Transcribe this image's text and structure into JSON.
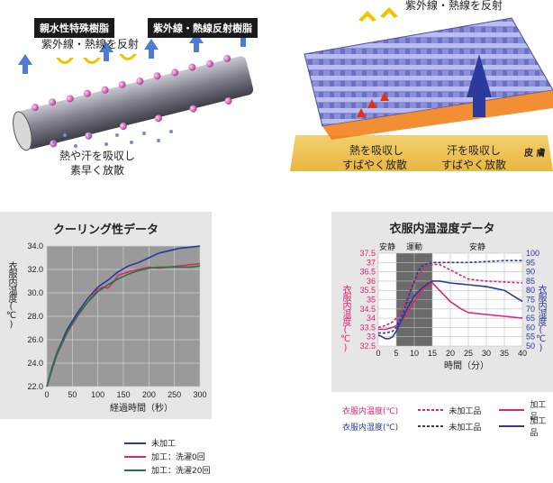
{
  "fiber_illustration": {
    "label_resin_hydrophilic": "親水性特殊樹脂",
    "label_resin_uv_reflect": "紫外線・熱線反射樹脂",
    "text_reflect": "紫外線・熱線を反射",
    "caption_line1": "熱や汗を吸収し",
    "caption_line2": "素早く放散"
  },
  "fabric_illustration": {
    "text_reflect": "紫外線・熱線を反射",
    "caption_heat_line1": "熱を吸収し",
    "caption_heat_line2": "すばやく放散",
    "caption_sweat_line1": "汗を吸収し",
    "caption_sweat_line2": "すばやく放散",
    "skin_label": "皮 膚"
  },
  "chart_data": [
    {
      "type": "line",
      "title": "クーリング性データ",
      "xlabel": "経過時間（秒）",
      "ylabel": "衣服内温度(℃)",
      "xlim": [
        0,
        300
      ],
      "ylim": [
        22.0,
        34.0
      ],
      "x_ticks": [
        "0",
        "50",
        "100",
        "150",
        "200",
        "250",
        "300"
      ],
      "y_ticks": [
        "22.0",
        "24.0",
        "26.0",
        "28.0",
        "30.0",
        "32.0",
        "34.0"
      ],
      "grid": true,
      "legend_position": "bottom",
      "series": [
        {
          "name": "未加工",
          "color": "#2b3a9a",
          "x": [
            0,
            10,
            20,
            40,
            60,
            80,
            100,
            120,
            140,
            160,
            180,
            200,
            220,
            240,
            260,
            280,
            300
          ],
          "y": [
            22.0,
            23.6,
            24.9,
            26.9,
            28.3,
            29.5,
            30.5,
            31.1,
            31.8,
            32.3,
            32.6,
            33.0,
            33.4,
            33.6,
            33.8,
            33.9,
            34.0
          ]
        },
        {
          "name": "加工：洗濯0回",
          "color": "#e0246e",
          "x": [
            0,
            10,
            20,
            40,
            60,
            80,
            100,
            110,
            120,
            130,
            140,
            160,
            180,
            200,
            220,
            240,
            260,
            280,
            300
          ],
          "y": [
            22.0,
            23.4,
            24.7,
            26.6,
            28.0,
            29.2,
            30.3,
            30.5,
            30.4,
            30.9,
            31.5,
            31.8,
            32.0,
            32.2,
            32.1,
            32.2,
            32.3,
            32.4,
            32.5
          ]
        },
        {
          "name": "加工：洗濯20回",
          "color": "#1e7a3e",
          "x": [
            0,
            10,
            20,
            40,
            60,
            80,
            100,
            120,
            140,
            160,
            180,
            200,
            220,
            240,
            260,
            280,
            300
          ],
          "y": [
            22.0,
            23.5,
            24.8,
            26.7,
            28.1,
            29.2,
            30.1,
            30.7,
            31.2,
            31.6,
            31.9,
            32.1,
            32.2,
            32.2,
            32.2,
            32.2,
            32.3
          ]
        }
      ]
    },
    {
      "type": "line",
      "title": "衣服内温湿度データ",
      "xlabel": "時間（分）",
      "ylabel_left": "衣服内温度(℃)",
      "ylabel_right": "衣服内湿度(℃)",
      "xlim": [
        0,
        40
      ],
      "ylim_left": [
        32.5,
        37.5
      ],
      "ylim_right": [
        50,
        100
      ],
      "x_ticks": [
        "0",
        "5",
        "10",
        "15",
        "20",
        "25",
        "30",
        "35",
        "40"
      ],
      "y_ticks_left": [
        "32.5",
        "33",
        "33.5",
        "34",
        "34.5",
        "35",
        "35.5",
        "36",
        "36.5",
        "37",
        "37.5"
      ],
      "y_ticks_right": [
        "50",
        "55",
        "60",
        "65",
        "70",
        "75",
        "80",
        "85",
        "90",
        "95",
        "100"
      ],
      "phases": [
        {
          "label": "安静",
          "from": 0,
          "to": 5
        },
        {
          "label": "運動",
          "from": 5,
          "to": 15
        },
        {
          "label": "安静",
          "from": 15,
          "to": 40
        }
      ],
      "legend": {
        "row_temp_label": "衣服内温度(℃)",
        "row_humid_label": "衣服内湿度(℃)",
        "unprocessed": "未加工品",
        "processed": "加工品"
      },
      "series": [
        {
          "name": "未加工品",
          "measure": "temperature",
          "axis": "left",
          "style": "dashed",
          "color": "#e0246e",
          "x": [
            0,
            2,
            4,
            5,
            7,
            9,
            11,
            13,
            15,
            17,
            20,
            25,
            30,
            35,
            40
          ],
          "y": [
            33.5,
            33.6,
            33.8,
            34.0,
            34.6,
            35.5,
            36.3,
            36.8,
            36.9,
            36.9,
            36.6,
            36.1,
            36.0,
            35.95,
            35.9
          ]
        },
        {
          "name": "加工品",
          "measure": "temperature",
          "axis": "left",
          "style": "solid",
          "color": "#e0246e",
          "x": [
            0,
            2,
            4,
            5,
            7,
            9,
            11,
            13,
            15,
            17,
            20,
            23,
            25,
            30,
            35,
            40
          ],
          "y": [
            33.4,
            33.4,
            33.5,
            33.6,
            34.0,
            34.6,
            35.2,
            35.7,
            35.9,
            35.5,
            34.9,
            34.5,
            34.3,
            34.2,
            34.1,
            34.0
          ]
        },
        {
          "name": "未加工品",
          "measure": "humidity",
          "axis": "right",
          "style": "dashed",
          "color": "#2b3a9a",
          "x": [
            0,
            2,
            4,
            5,
            7,
            9,
            11,
            12,
            13,
            15,
            20,
            25,
            30,
            35,
            40
          ],
          "y": [
            57,
            57,
            58,
            60,
            68,
            80,
            90,
            93,
            94,
            95,
            95,
            95,
            95.5,
            96,
            96
          ]
        },
        {
          "name": "加工品",
          "measure": "humidity",
          "axis": "right",
          "style": "solid",
          "color": "#2b3a9a",
          "x": [
            0,
            1,
            2,
            3,
            4,
            5,
            6,
            8,
            10,
            12,
            14,
            15,
            17,
            20,
            25,
            30,
            35,
            40
          ],
          "y": [
            56,
            55,
            54,
            54,
            55,
            58,
            62,
            70,
            77,
            81,
            84,
            85,
            85,
            84,
            83,
            82,
            80,
            74
          ]
        }
      ]
    }
  ]
}
